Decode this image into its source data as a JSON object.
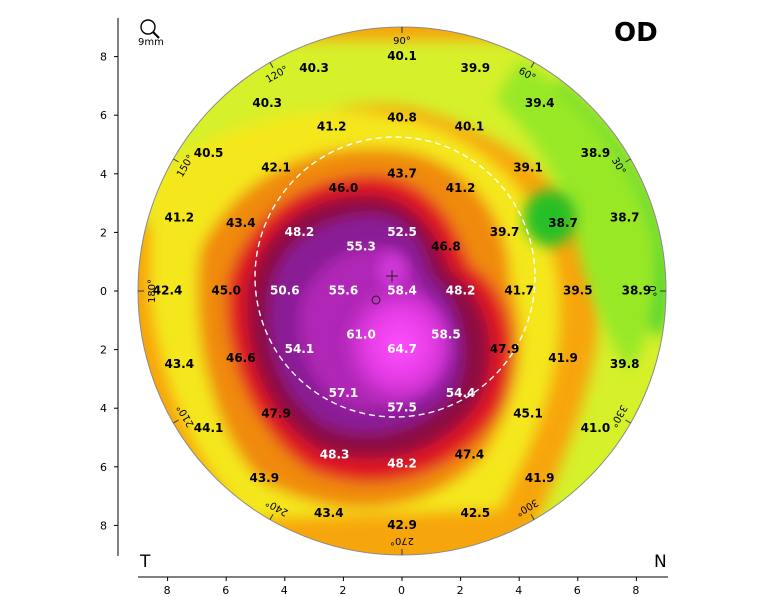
{
  "header": {
    "eye_label": "OD",
    "zoom_label": "9mm",
    "left_side_label": "T",
    "right_side_label": "N"
  },
  "colors": {
    "green": "#2fd23a",
    "yellow_green": "#c8f024",
    "yellow": "#f8f020",
    "orange": "#f5a000",
    "red": "#e01418",
    "maroon": "#8a0e48",
    "purple": "#8c1694",
    "magenta": "#e83ce8"
  },
  "chart_data": {
    "type": "heatmap",
    "xlim": [
      -9,
      9
    ],
    "ylim": [
      -9,
      9
    ],
    "x_ticks": [
      "8",
      "6",
      "4",
      "2",
      "0",
      "2",
      "4",
      "6",
      "8"
    ],
    "y_ticks": [
      "8",
      "6",
      "4",
      "2",
      "0",
      "2",
      "4",
      "6",
      "8"
    ],
    "angle_labels": [
      {
        "angle": 90,
        "text": "90°"
      },
      {
        "angle": 60,
        "text": "60°"
      },
      {
        "angle": 30,
        "text": "30°"
      },
      {
        "angle": 0,
        "text": "0°"
      },
      {
        "angle": 330,
        "text": "330°"
      },
      {
        "angle": 300,
        "text": "300°"
      },
      {
        "angle": 270,
        "text": "270°"
      },
      {
        "angle": 240,
        "text": "240°"
      },
      {
        "angle": 210,
        "text": "210°"
      },
      {
        "angle": 180,
        "text": "180°"
      },
      {
        "angle": 150,
        "text": "150°"
      },
      {
        "angle": 120,
        "text": "120°"
      }
    ],
    "points": [
      {
        "x": -3,
        "y": 7.6,
        "v": "40.3"
      },
      {
        "x": 0,
        "y": 8.0,
        "v": "40.1"
      },
      {
        "x": 2.5,
        "y": 7.6,
        "v": "39.9"
      },
      {
        "x": -4.6,
        "y": 6.4,
        "v": "40.3"
      },
      {
        "x": 0,
        "y": 5.9,
        "v": "40.8"
      },
      {
        "x": 4.7,
        "y": 6.4,
        "v": "39.4"
      },
      {
        "x": -2.4,
        "y": 5.6,
        "v": "41.2"
      },
      {
        "x": 2.3,
        "y": 5.6,
        "v": "40.1"
      },
      {
        "x": -6.6,
        "y": 4.7,
        "v": "40.5"
      },
      {
        "x": -4.3,
        "y": 4.2,
        "v": "42.1"
      },
      {
        "x": 0,
        "y": 4.0,
        "v": "43.7"
      },
      {
        "x": 4.3,
        "y": 4.2,
        "v": "39.1"
      },
      {
        "x": 6.6,
        "y": 4.7,
        "v": "38.9"
      },
      {
        "x": -2.0,
        "y": 3.5,
        "v": "46.0"
      },
      {
        "x": 2.0,
        "y": 3.5,
        "v": "41.2"
      },
      {
        "x": -7.6,
        "y": 2.5,
        "v": "41.2"
      },
      {
        "x": -5.5,
        "y": 2.3,
        "v": "43.4"
      },
      {
        "x": -3.5,
        "y": 2.0,
        "v": "48.2"
      },
      {
        "x": 0,
        "y": 2.0,
        "v": "52.5"
      },
      {
        "x": 3.5,
        "y": 2.0,
        "v": "39.7"
      },
      {
        "x": 5.5,
        "y": 2.3,
        "v": "38.7"
      },
      {
        "x": 7.6,
        "y": 2.5,
        "v": "38.7"
      },
      {
        "x": -1.4,
        "y": 1.5,
        "v": "55.3"
      },
      {
        "x": 1.5,
        "y": 1.5,
        "v": "46.8"
      },
      {
        "x": -8.0,
        "y": 0,
        "v": "42.4"
      },
      {
        "x": -6.0,
        "y": 0,
        "v": "45.0"
      },
      {
        "x": -4.0,
        "y": 0,
        "v": "50.6"
      },
      {
        "x": -2.0,
        "y": 0,
        "v": "55.6"
      },
      {
        "x": 0,
        "y": 0,
        "v": "58.4"
      },
      {
        "x": 2.0,
        "y": 0,
        "v": "48.2"
      },
      {
        "x": 4.0,
        "y": 0,
        "v": "41.7"
      },
      {
        "x": 6.0,
        "y": 0,
        "v": "39.5"
      },
      {
        "x": 8.0,
        "y": 0,
        "v": "38.9"
      },
      {
        "x": -1.4,
        "y": -1.5,
        "v": "61.0"
      },
      {
        "x": 1.5,
        "y": -1.5,
        "v": "58.5"
      },
      {
        "x": -7.6,
        "y": -2.5,
        "v": "43.4"
      },
      {
        "x": -5.5,
        "y": -2.3,
        "v": "46.6"
      },
      {
        "x": -3.5,
        "y": -2.0,
        "v": "54.1"
      },
      {
        "x": 0,
        "y": -2.0,
        "v": "64.7"
      },
      {
        "x": 3.5,
        "y": -2.0,
        "v": "47.9"
      },
      {
        "x": 5.5,
        "y": -2.3,
        "v": "41.9"
      },
      {
        "x": 7.6,
        "y": -2.5,
        "v": "39.8"
      },
      {
        "x": -2.0,
        "y": -3.5,
        "v": "57.1"
      },
      {
        "x": 2.0,
        "y": -3.5,
        "v": "54.4"
      },
      {
        "x": -6.6,
        "y": -4.7,
        "v": "44.1"
      },
      {
        "x": -4.3,
        "y": -4.2,
        "v": "47.9"
      },
      {
        "x": 0,
        "y": -4.0,
        "v": "57.5"
      },
      {
        "x": 4.3,
        "y": -4.2,
        "v": "45.1"
      },
      {
        "x": 6.6,
        "y": -4.7,
        "v": "41.0"
      },
      {
        "x": -2.3,
        "y": -5.6,
        "v": "48.3"
      },
      {
        "x": 0,
        "y": -5.9,
        "v": "48.2"
      },
      {
        "x": 2.3,
        "y": -5.6,
        "v": "47.4"
      },
      {
        "x": -4.7,
        "y": -6.4,
        "v": "43.9"
      },
      {
        "x": 4.7,
        "y": -6.4,
        "v": "41.9"
      },
      {
        "x": -2.5,
        "y": -7.6,
        "v": "43.4"
      },
      {
        "x": 0,
        "y": -8.0,
        "v": "42.9"
      },
      {
        "x": 2.5,
        "y": -7.6,
        "v": "42.5"
      }
    ]
  }
}
